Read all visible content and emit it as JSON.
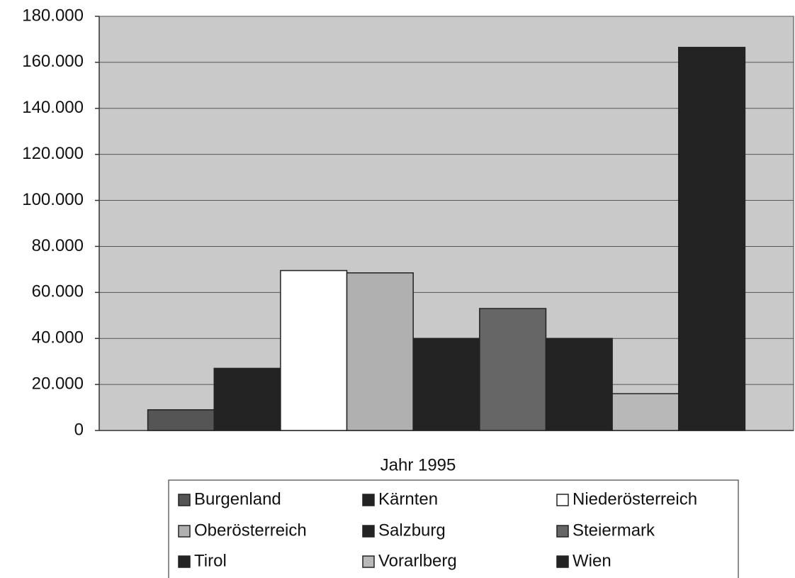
{
  "chart_data": {
    "type": "bar",
    "categories": [
      "Jahr 1995"
    ],
    "series": [
      {
        "name": "Burgenland",
        "color": "#555555",
        "values": [
          9000
        ]
      },
      {
        "name": "Kärnten",
        "color": "#232323",
        "values": [
          27000
        ]
      },
      {
        "name": "Niederösterreich",
        "color": "#ffffff",
        "values": [
          69500
        ]
      },
      {
        "name": "Oberösterreich",
        "color": "#b0b0b0",
        "values": [
          68500
        ]
      },
      {
        "name": "Salzburg",
        "color": "#232323",
        "values": [
          40000
        ]
      },
      {
        "name": "Steiermark",
        "color": "#666666",
        "values": [
          53000
        ]
      },
      {
        "name": "Tirol",
        "color": "#232323",
        "values": [
          40000
        ]
      },
      {
        "name": "Vorarlberg",
        "color": "#b8b8b8",
        "values": [
          16000
        ]
      },
      {
        "name": "Wien",
        "color": "#232323",
        "values": [
          166500
        ]
      }
    ],
    "ylim": [
      0,
      180000
    ],
    "yticks": [
      0,
      {
        "value": 20000,
        "label": "20.000"
      },
      {
        "value": 40000,
        "label": "40.000"
      },
      {
        "value": 60000,
        "label": "60.000"
      },
      {
        "value": 80000,
        "label": "80.000"
      },
      {
        "value": 100000,
        "label": "100.000"
      },
      {
        "value": 120000,
        "label": "120.000"
      },
      {
        "value": 140000,
        "label": "140.000"
      },
      {
        "value": 160000,
        "label": "160.000"
      },
      {
        "value": 180000,
        "label": "180.000"
      }
    ],
    "grid": true,
    "legend": "bottom"
  }
}
